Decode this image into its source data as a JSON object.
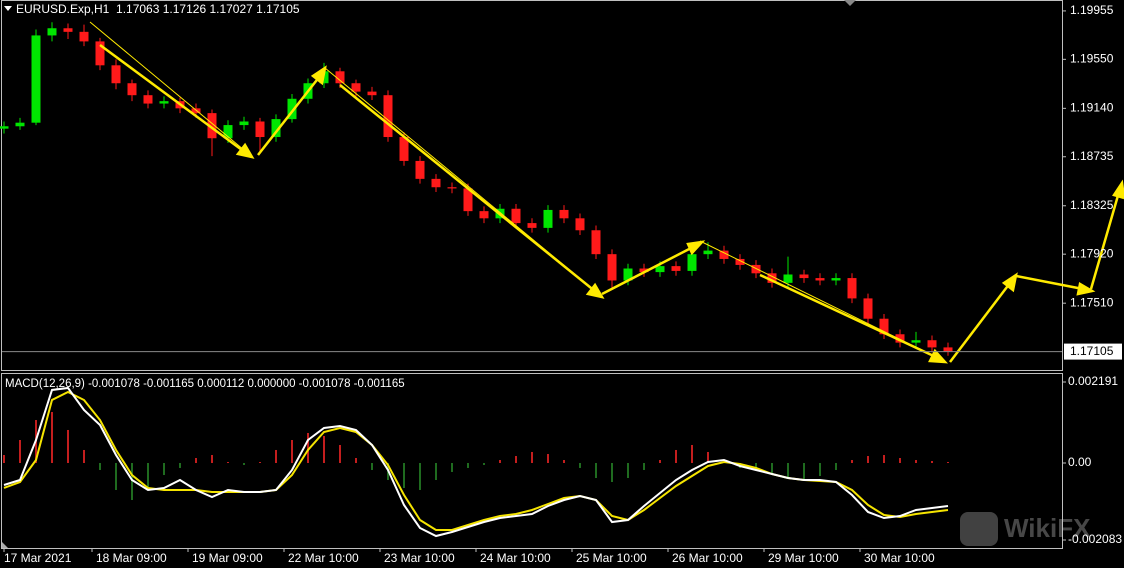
{
  "chart_data": [
    {
      "type": "candlestick",
      "header": "EURUSD.Exp,H1  1.17063 1.17126 1.17027 1.17105",
      "x": [
        0,
        4,
        8,
        12,
        16,
        20,
        24,
        28,
        32,
        36,
        40,
        44,
        48,
        52,
        56,
        60,
        64,
        68,
        72,
        76,
        80,
        84,
        88,
        92,
        96,
        100,
        104,
        108,
        112,
        116,
        120,
        124,
        128,
        132,
        136,
        140,
        144,
        148,
        152,
        156,
        160,
        164,
        168,
        172,
        176,
        180,
        184,
        188,
        192,
        196,
        200,
        204,
        208,
        212,
        216,
        220,
        224,
        228,
        232,
        236
      ],
      "open": [
        1.1897,
        1.1899,
        1.1902,
        1.1975,
        1.1981,
        1.1978,
        1.197,
        1.195,
        1.1935,
        1.1925,
        1.1918,
        1.192,
        1.1914,
        1.191,
        1.1889,
        1.19,
        1.1903,
        1.189,
        1.1905,
        1.1922,
        1.1935,
        1.1945,
        1.1935,
        1.1928,
        1.1925,
        1.189,
        1.187,
        1.1855,
        1.1848,
        1.1847,
        1.1828,
        1.1822,
        1.183,
        1.1818,
        1.1814,
        1.1829,
        1.1822,
        1.1812,
        1.1792,
        1.177,
        1.178,
        1.1777,
        1.1782,
        1.1778,
        1.1792,
        1.1795,
        1.1788,
        1.1783,
        1.1776,
        1.1768,
        1.1775,
        1.1772,
        1.177,
        1.1772,
        1.1755,
        1.1738,
        1.1725,
        1.1718,
        1.172,
        1.1714
      ],
      "high": [
        1.1903,
        1.1906,
        1.198,
        1.1986,
        1.1985,
        1.1984,
        1.1973,
        1.1955,
        1.1938,
        1.1929,
        1.1924,
        1.1923,
        1.1918,
        1.1913,
        1.1904,
        1.1907,
        1.1906,
        1.1909,
        1.1926,
        1.1939,
        1.1952,
        1.1948,
        1.1938,
        1.1932,
        1.1929,
        1.1894,
        1.1874,
        1.1859,
        1.1852,
        1.1851,
        1.1832,
        1.1834,
        1.1834,
        1.1822,
        1.1833,
        1.1833,
        1.1826,
        1.1816,
        1.1796,
        1.1784,
        1.1784,
        1.1786,
        1.1786,
        1.1796,
        1.1802,
        1.1799,
        1.1792,
        1.1787,
        1.178,
        1.179,
        1.1779,
        1.1776,
        1.1776,
        1.1776,
        1.1759,
        1.1742,
        1.1729,
        1.1727,
        1.1724,
        1.1718
      ],
      "low": [
        1.1893,
        1.1896,
        1.19,
        1.197,
        1.1972,
        1.1966,
        1.1946,
        1.193,
        1.192,
        1.1914,
        1.1914,
        1.191,
        1.1906,
        1.1874,
        1.1885,
        1.1896,
        1.1876,
        1.1886,
        1.1902,
        1.1918,
        1.1931,
        1.1931,
        1.1924,
        1.1921,
        1.1886,
        1.1866,
        1.1851,
        1.1844,
        1.1843,
        1.1824,
        1.1818,
        1.1818,
        1.1814,
        1.181,
        1.181,
        1.1818,
        1.1808,
        1.1788,
        1.1764,
        1.1766,
        1.1773,
        1.1773,
        1.1774,
        1.1774,
        1.1788,
        1.1784,
        1.1779,
        1.1772,
        1.1764,
        1.1764,
        1.1768,
        1.1766,
        1.1766,
        1.1751,
        1.1734,
        1.1721,
        1.1714,
        1.1714,
        1.171,
        1.1707
      ],
      "close": [
        1.1899,
        1.1902,
        1.1975,
        1.1981,
        1.1978,
        1.197,
        1.195,
        1.1935,
        1.1925,
        1.1918,
        1.192,
        1.1914,
        1.191,
        1.1889,
        1.19,
        1.1903,
        1.189,
        1.1905,
        1.1922,
        1.1935,
        1.1945,
        1.1935,
        1.1928,
        1.1925,
        1.189,
        1.187,
        1.1855,
        1.1848,
        1.1847,
        1.1828,
        1.1822,
        1.183,
        1.1818,
        1.1814,
        1.1829,
        1.1822,
        1.1812,
        1.1792,
        1.177,
        1.178,
        1.1777,
        1.1782,
        1.1778,
        1.1792,
        1.1795,
        1.1788,
        1.1783,
        1.1776,
        1.1768,
        1.1775,
        1.1772,
        1.177,
        1.1772,
        1.1755,
        1.1738,
        1.1725,
        1.1718,
        1.172,
        1.1714,
        1.17105
      ],
      "up_color": "#00e600",
      "down_color": "#ff1a1a",
      "ylim": [
        1.16951,
        1.20038
      ],
      "yticks": [
        1.19955,
        {
          "value": 1.1955,
          "label": "1.19550"
        },
        {
          "value": 1.1914,
          "label": "1.19140"
        },
        1.18735,
        1.18325,
        {
          "value": 1.1792,
          "label": "1.17920"
        },
        {
          "value": 1.1751,
          "label": "1.17510"
        }
      ],
      "last_price": 1.17105,
      "xlim": [
        -0.5,
        264.5
      ]
    },
    {
      "type": "macd",
      "title": "MACD(12,26,9) -0.001078 -0.001165 0.000112 0.000000 -0.001078 -0.001165",
      "histogram": [
        0.000216,
        0.000622,
        0.001163,
        0.00138,
        0.000893,
        0.000352,
        -0.000189,
        -0.00073,
        -0.001001,
        -0.00073,
        -0.000325,
        -0.000135,
        0.000135,
        0.000216,
        2.7e-05,
        -5.4e-05,
        2.7e-05,
        0.000352,
        0.000622,
        0.000812,
        0.00073,
        0.000487,
        0.000135,
        -0.000189,
        -0.00046,
        -0.000676,
        -0.00073,
        -0.00046,
        -0.000243,
        -0.000135,
        -5.4e-05,
        8.1e-05,
        0.000189,
        0.000298,
        0.000243,
        8.1e-05,
        -0.000135,
        -0.000406,
        -0.000514,
        -0.000406,
        -0.000189,
        8.1e-05,
        0.000352,
        0.000487,
        0.000298,
        2.7e-05,
        -0.000135,
        -0.000189,
        -0.000298,
        -0.000406,
        -0.00046,
        -0.000352,
        -0.000189,
        8.1e-05,
        0.000189,
        0.000216,
        0.000135,
        8.1e-05,
        5.4e-05,
        2.7e-05
      ],
      "main": [
        -0.000595,
        -0.00046,
        0.000622,
        0.001975,
        0.002029,
        0.001434,
        0.001028,
        0.000216,
        -0.00046,
        -0.00073,
        -0.000676,
        -0.00046,
        -0.00073,
        -0.00092,
        -0.00073,
        -0.000784,
        -0.000784,
        -0.00073,
        -0.000189,
        0.000622,
        0.000947,
        0.001001,
        0.000893,
        0.000487,
        -0.000189,
        -0.001136,
        -0.001758,
        -0.001975,
        -0.001866,
        -0.001731,
        -0.001596,
        -0.001488,
        -0.001434,
        -0.00138,
        -0.001163,
        -0.001001,
        -0.000893,
        -0.001001,
        -0.001596,
        -0.001542,
        -0.001163,
        -0.000812,
        -0.00046,
        -0.000189,
        2.7e-05,
        8.1e-05,
        -8.1e-05,
        -0.000189,
        -0.000298,
        -0.000406,
        -0.00046,
        -0.00046,
        -0.000514,
        -0.000866,
        -0.001325,
        -0.001488,
        -0.001434,
        -0.001271,
        -0.001217,
        -0.001163
      ],
      "signal": [
        -0.000676,
        -0.000514,
        8.1e-05,
        0.001704,
        0.001921,
        0.001704,
        0.001163,
        0.000352,
        -0.000325,
        -0.000676,
        -0.00073,
        -0.00073,
        -0.00073,
        -0.000784,
        -0.000784,
        -0.000784,
        -0.000784,
        -0.00073,
        -0.000325,
        0.000352,
        0.000839,
        0.000947,
        0.000839,
        0.000487,
        -5.4e-05,
        -0.000866,
        -0.001542,
        -0.001812,
        -0.001812,
        -0.001677,
        -0.001542,
        -0.001434,
        -0.00138,
        -0.001271,
        -0.001109,
        -0.000947,
        -0.000893,
        -0.001001,
        -0.001434,
        -0.001542,
        -0.001271,
        -0.000947,
        -0.000622,
        -0.000352,
        -8.1e-05,
        2.7e-05,
        -2.7e-05,
        -0.000135,
        -0.000298,
        -0.000406,
        -0.00046,
        -0.000487,
        -0.000514,
        -0.00073,
        -0.001136,
        -0.001407,
        -0.001461,
        -0.00138,
        -0.001325,
        -0.001271
      ],
      "hist_up_color": "#c41e1e",
      "hist_down_color": "#1f6b1f",
      "main_color": "#ffffff",
      "signal_color": "#f5e400",
      "ylim": [
        -0.002299,
        0.002407
      ],
      "yticks": [
        0.002191,
        {
          "value": 0,
          "label": "0.00"
        },
        -0.002083
      ],
      "xlim": [
        -0.5,
        264.5
      ],
      "xticks": [
        {
          "value": 0,
          "label": "17 Mar 2021"
        },
        {
          "value": 22,
          "label": "18 Mar 09:00"
        },
        {
          "value": 46,
          "label": "19 Mar 09:00"
        },
        {
          "value": 70,
          "label": "22 Mar 10:00"
        },
        {
          "value": 94,
          "label": "23 Mar 10:00"
        },
        {
          "value": 118,
          "label": "24 Mar 10:00"
        },
        {
          "value": 142,
          "label": "25 Mar 10:00"
        },
        {
          "value": 166,
          "label": "26 Mar 10:00"
        },
        {
          "value": 190,
          "label": "29 Mar 10:00"
        },
        {
          "value": 214,
          "label": "30 Mar 10:00"
        }
      ]
    }
  ],
  "watermark": "WikiFX"
}
